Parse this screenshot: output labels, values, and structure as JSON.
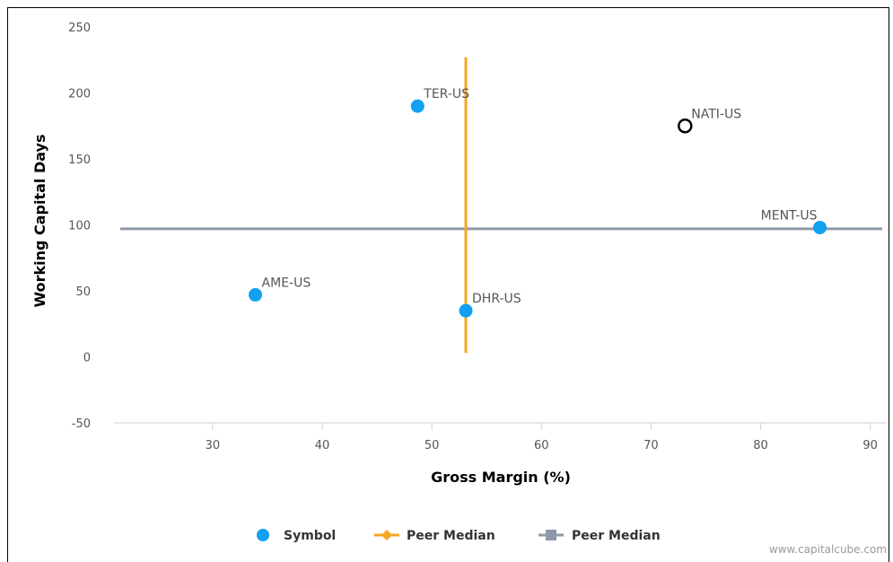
{
  "chart_data": {
    "type": "scatter",
    "xlabel": "Gross Margin (%)",
    "ylabel": "Working Capital Days",
    "xlim": [
      21,
      91.5
    ],
    "ylim": [
      -50,
      250
    ],
    "x_ticks": [
      30,
      40,
      50,
      60,
      70,
      80,
      90
    ],
    "y_ticks": [
      250,
      200,
      150,
      100,
      50,
      0,
      -50
    ],
    "grid": false,
    "points": [
      {
        "label": "TER-US",
        "x": 48.7,
        "y": 190,
        "style": "filled"
      },
      {
        "label": "AME-US",
        "x": 33.9,
        "y": 47,
        "style": "filled"
      },
      {
        "label": "DHR-US",
        "x": 53.1,
        "y": 35,
        "style": "filled"
      },
      {
        "label": "MENT-US",
        "x": 85.4,
        "y": 98,
        "style": "filled"
      },
      {
        "label": "NATI-US",
        "x": 73.1,
        "y": 175,
        "style": "hollow"
      }
    ],
    "peer_median_x": 53.1,
    "peer_median_x_range": [
      3,
      227
    ],
    "peer_median_y": 97,
    "colors": {
      "symbol": "#13a0f0",
      "peer_median_vertical": "#f5a623",
      "peer_median_horizontal": "#8f98a8",
      "hollow_stroke": "#000000",
      "axis_line": "#c8d3e0"
    },
    "legend": {
      "position": "bottom-center",
      "items": [
        {
          "label": "Symbol",
          "marker": "circle"
        },
        {
          "label": "Peer Median",
          "marker": "line-diamond"
        },
        {
          "label": "Peer Median",
          "marker": "line-square"
        }
      ]
    }
  },
  "credit": "www.capitalcube.com"
}
